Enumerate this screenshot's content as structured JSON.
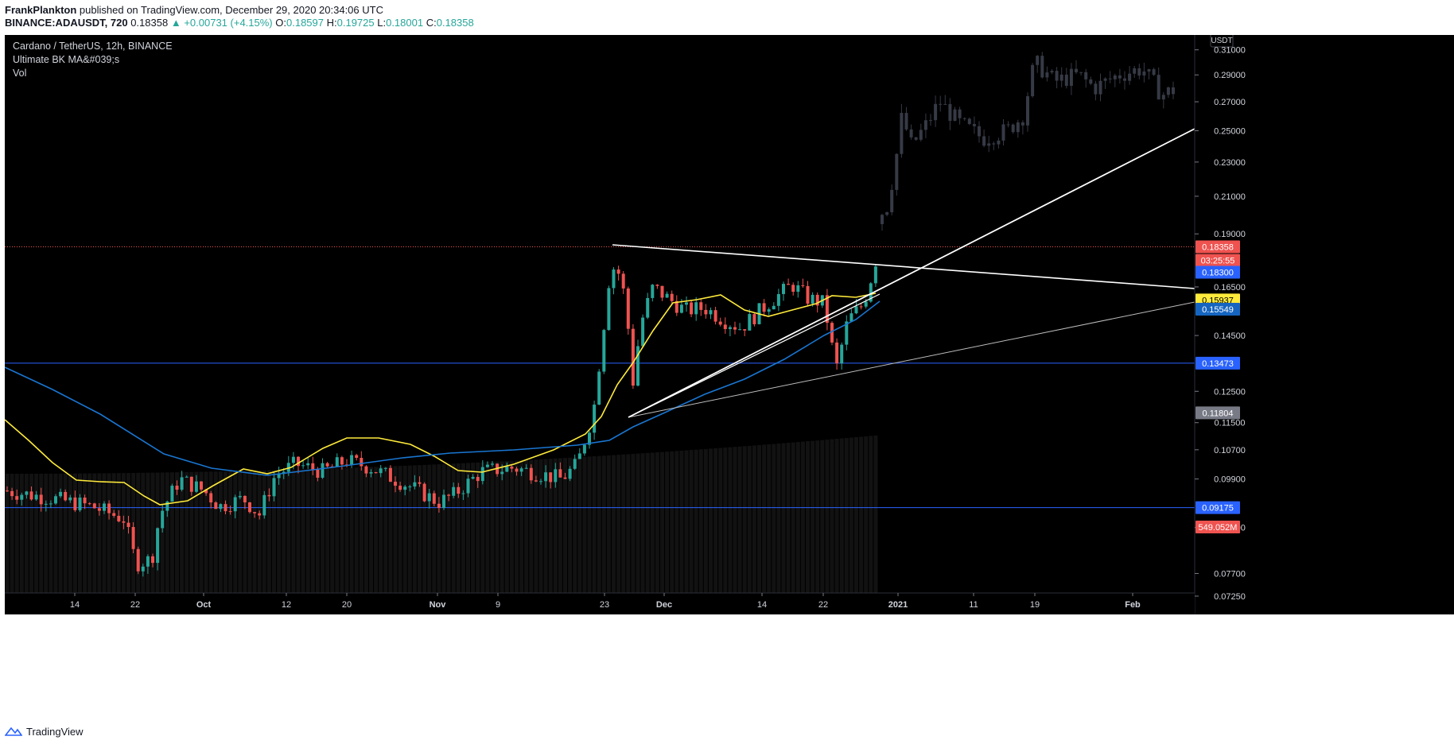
{
  "header": {
    "author": "FrankPlankton",
    "published_text": "published on TradingView.com, December 29, 2020 20:34:06 UTC",
    "symbol_line": "BINANCE:ADAUSDT, 720",
    "last": "0.18358",
    "change": "+0.00731 (+4.15%)",
    "o_label": "O:",
    "o_val": "0.18597",
    "h_label": "H:",
    "h_val": "0.19725",
    "l_label": "L:",
    "l_val": "0.18001",
    "c_label": "C:",
    "c_val": "0.18358"
  },
  "legend": {
    "title": "Cardano / TetherUS, 12h, BINANCE",
    "indicator": "Ultimate BK MA&#039;s",
    "volume": "Vol"
  },
  "price_axis": {
    "currency": "USDT",
    "ticks": [
      "0.31000",
      "0.29000",
      "0.27000",
      "0.25000",
      "0.23000",
      "0.21000",
      "0.19000",
      "0.16500",
      "0.14500",
      "0.12500",
      "0.11500",
      "0.10700",
      "0.09900",
      "0.08700",
      "0.07700",
      "0.07250"
    ],
    "badges": [
      {
        "label": "0.18358",
        "color": "#ef5350",
        "text_color": "#ffffff"
      },
      {
        "label": "03:25:55",
        "color": "#ef5350",
        "text_color": "#ffffff"
      },
      {
        "label": "0.18300",
        "color": "#2962ff",
        "text_color": "#ffffff"
      },
      {
        "label": "0.15937",
        "color": "#ffeb3b",
        "text_color": "#000000"
      },
      {
        "label": "0.15549",
        "color": "#1565c0",
        "text_color": "#ffffff"
      },
      {
        "label": "0.13473",
        "color": "#2962ff",
        "text_color": "#ffffff"
      },
      {
        "label": "0.11804",
        "color": "#787b86",
        "text_color": "#ffffff"
      },
      {
        "label": "0.09175",
        "color": "#2962ff",
        "text_color": "#ffffff"
      },
      {
        "label": "549.052M",
        "color": "#ef5350",
        "text_color": "#ffffff"
      }
    ]
  },
  "time_axis": {
    "labels": [
      "14",
      "22",
      "Oct",
      "12",
      "20",
      "Nov",
      "9",
      "23",
      "Dec",
      "14",
      "22",
      "2021",
      "11",
      "19",
      "Feb"
    ],
    "bold": [
      "Oct",
      "Nov",
      "Dec",
      "2021",
      "Feb"
    ]
  },
  "colors": {
    "up": "#26a69a",
    "down": "#ef5350",
    "ma_fast": "#ffeb3b",
    "ma_slow": "#1976d2",
    "hline": "#2962ff",
    "trend": "#ffffff",
    "ghost": "#363a45"
  },
  "footer": {
    "brand": "TradingView"
  }
}
